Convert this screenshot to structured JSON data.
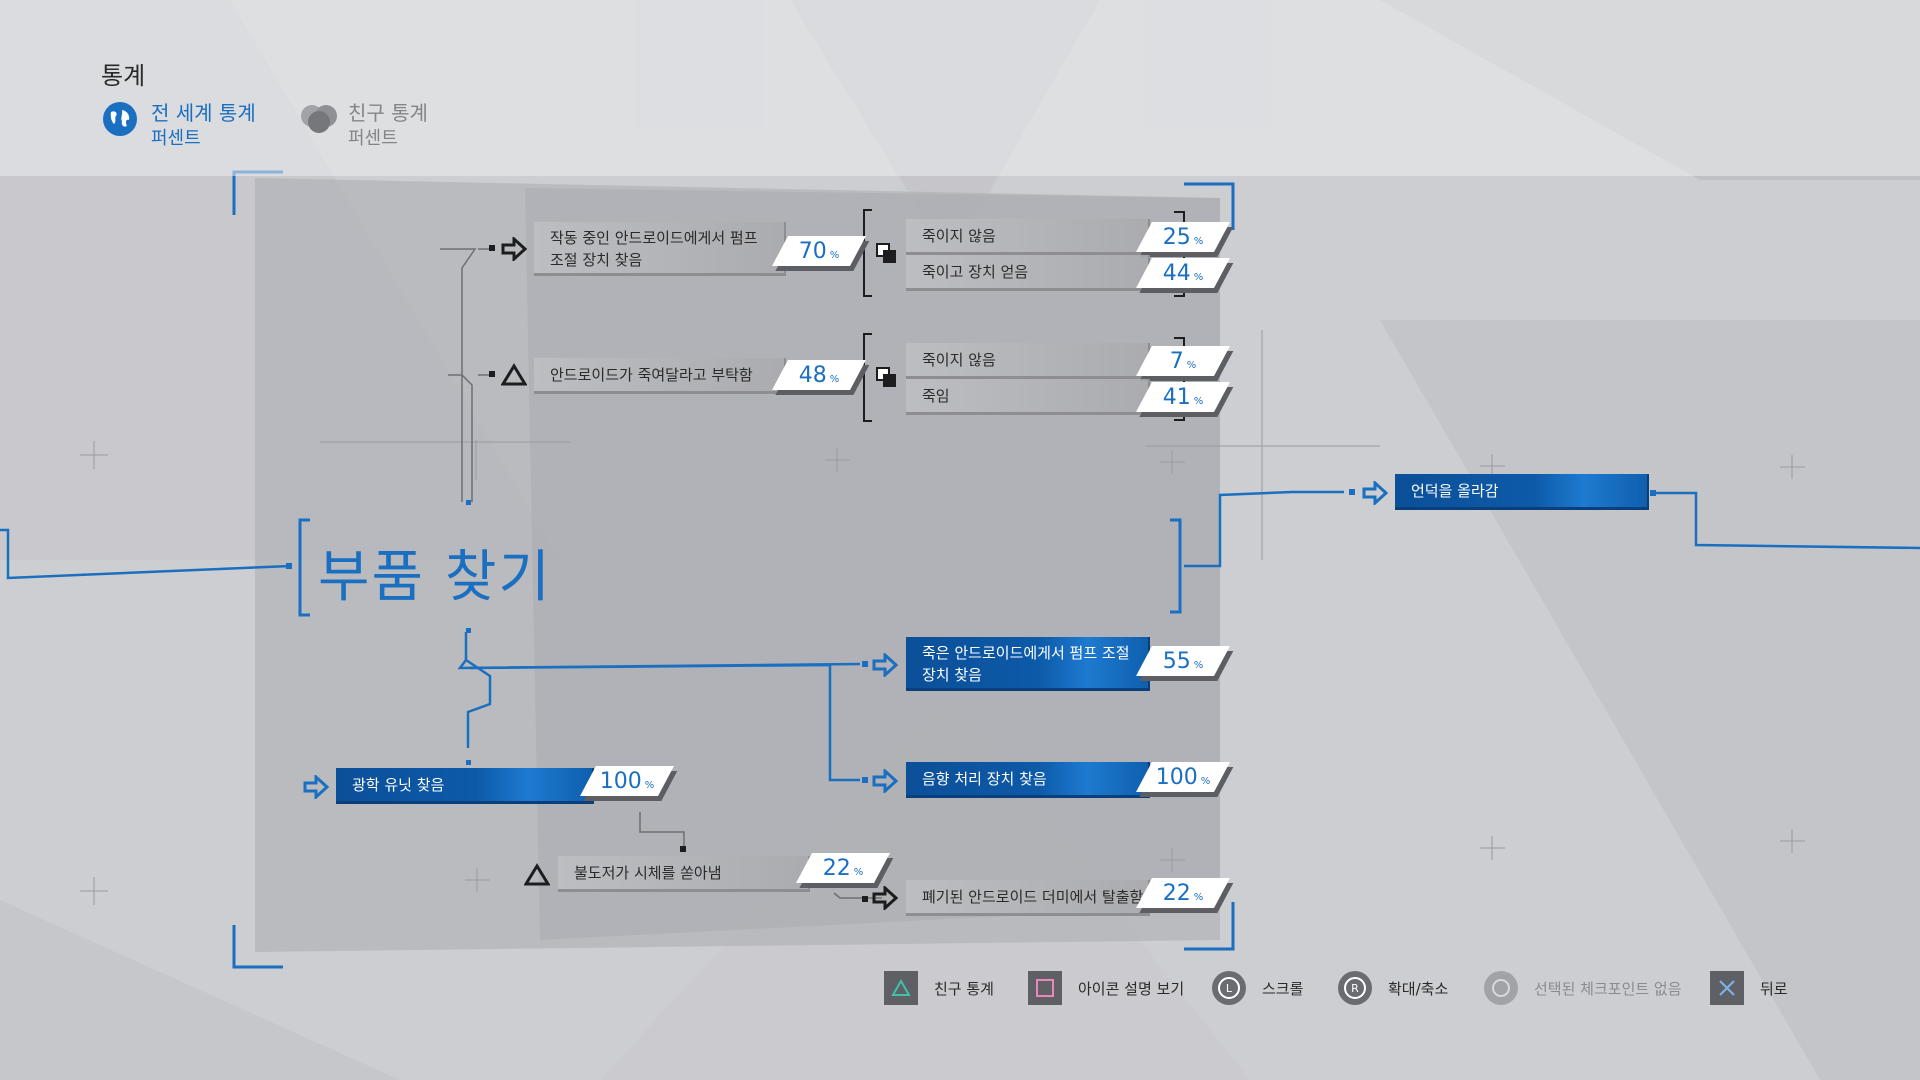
{
  "header": {
    "title": "통계",
    "tabs": [
      {
        "label": "전 세계 통계",
        "sub": "퍼센트",
        "icon": "globe-icon",
        "active": true
      },
      {
        "label": "친구 통계",
        "sub": "퍼센트",
        "icon": "friends-icon",
        "active": false
      }
    ]
  },
  "section_title": "부품 찾기",
  "nodes": {
    "pump_working": "작동 중인 안드로이드에게서 펌프\n조절 장치 찾음",
    "android_begs": "안드로이드가 죽여달라고 부탁함",
    "dont_kill_1": "죽이지 않음",
    "kill_get_part": "죽이고 장치 얻음",
    "dont_kill_2": "죽이지 않음",
    "killed": "죽임",
    "climb_hill": "언덕을 올라감",
    "pump_dead": "죽은 안드로이드에게서 펌프 조절\n장치 찾음",
    "audio_unit": "음향 처리 장치 찾음",
    "optical_unit": "광학 유닛 찾음",
    "bulldozer": "불도저가 시체를 쏟아냄",
    "escape_dummy": "폐기된 안드로이드 더미에서 탈출함"
  },
  "percents": {
    "pump_working": "70",
    "android_begs": "48",
    "dont_kill_1": "25",
    "kill_get_part": "44",
    "dont_kill_2": "7",
    "killed": "41",
    "pump_dead": "55",
    "audio_unit": "100",
    "optical_unit": "100",
    "bulldozer": "22",
    "escape_dummy": "22",
    "symbol": "%"
  },
  "controls": [
    {
      "label": "친구 통계",
      "icon": "triangle-button-icon"
    },
    {
      "label": "아이콘 설명 보기",
      "icon": "square-button-icon"
    },
    {
      "label": "스크롤",
      "icon": "left-stick-icon"
    },
    {
      "label": "확대/축소",
      "icon": "right-stick-icon"
    },
    {
      "label": "선택된 체크포인트 없음",
      "icon": "circle-button-icon"
    },
    {
      "label": "뒤로",
      "icon": "cross-button-icon"
    }
  ],
  "colors": {
    "accent": "#1a6fc0",
    "node_blue": "#0d5aa9",
    "background": "#cfd0d3"
  }
}
